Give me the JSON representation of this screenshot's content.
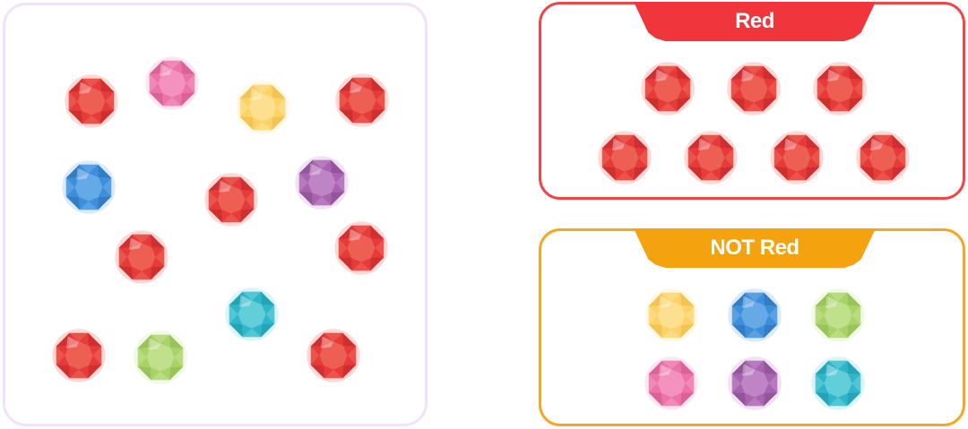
{
  "colors": {
    "red": {
      "base": "#e53b3b",
      "light": "#f0695a",
      "dark": "#b81e24"
    },
    "pink": {
      "base": "#ea73a8",
      "light": "#f59ac3",
      "dark": "#cc4c88"
    },
    "yellow": {
      "base": "#fbd266",
      "light": "#fde39a",
      "dark": "#e8b43c"
    },
    "blue": {
      "base": "#3e8fd9",
      "light": "#6fb0ea",
      "dark": "#2468b0"
    },
    "purple": {
      "base": "#a665ae",
      "light": "#c48ccc",
      "dark": "#7d4388"
    },
    "green": {
      "base": "#a9d26a",
      "light": "#c7e494",
      "dark": "#84b345"
    },
    "teal": {
      "base": "#2fb7c9",
      "light": "#6fd3de",
      "dark": "#1b8fa2"
    }
  },
  "pool": {
    "gems": [
      "red",
      "pink",
      "yellow",
      "red",
      "blue",
      "red",
      "purple",
      "red",
      "red",
      "teal",
      "red",
      "green",
      "red"
    ]
  },
  "red_group": {
    "label": "Red",
    "gems": [
      "red",
      "red",
      "red",
      "red",
      "red",
      "red",
      "red"
    ]
  },
  "not_red_group": {
    "label": "NOT Red",
    "gems": [
      "yellow",
      "blue",
      "green",
      "pink",
      "purple",
      "teal"
    ]
  }
}
